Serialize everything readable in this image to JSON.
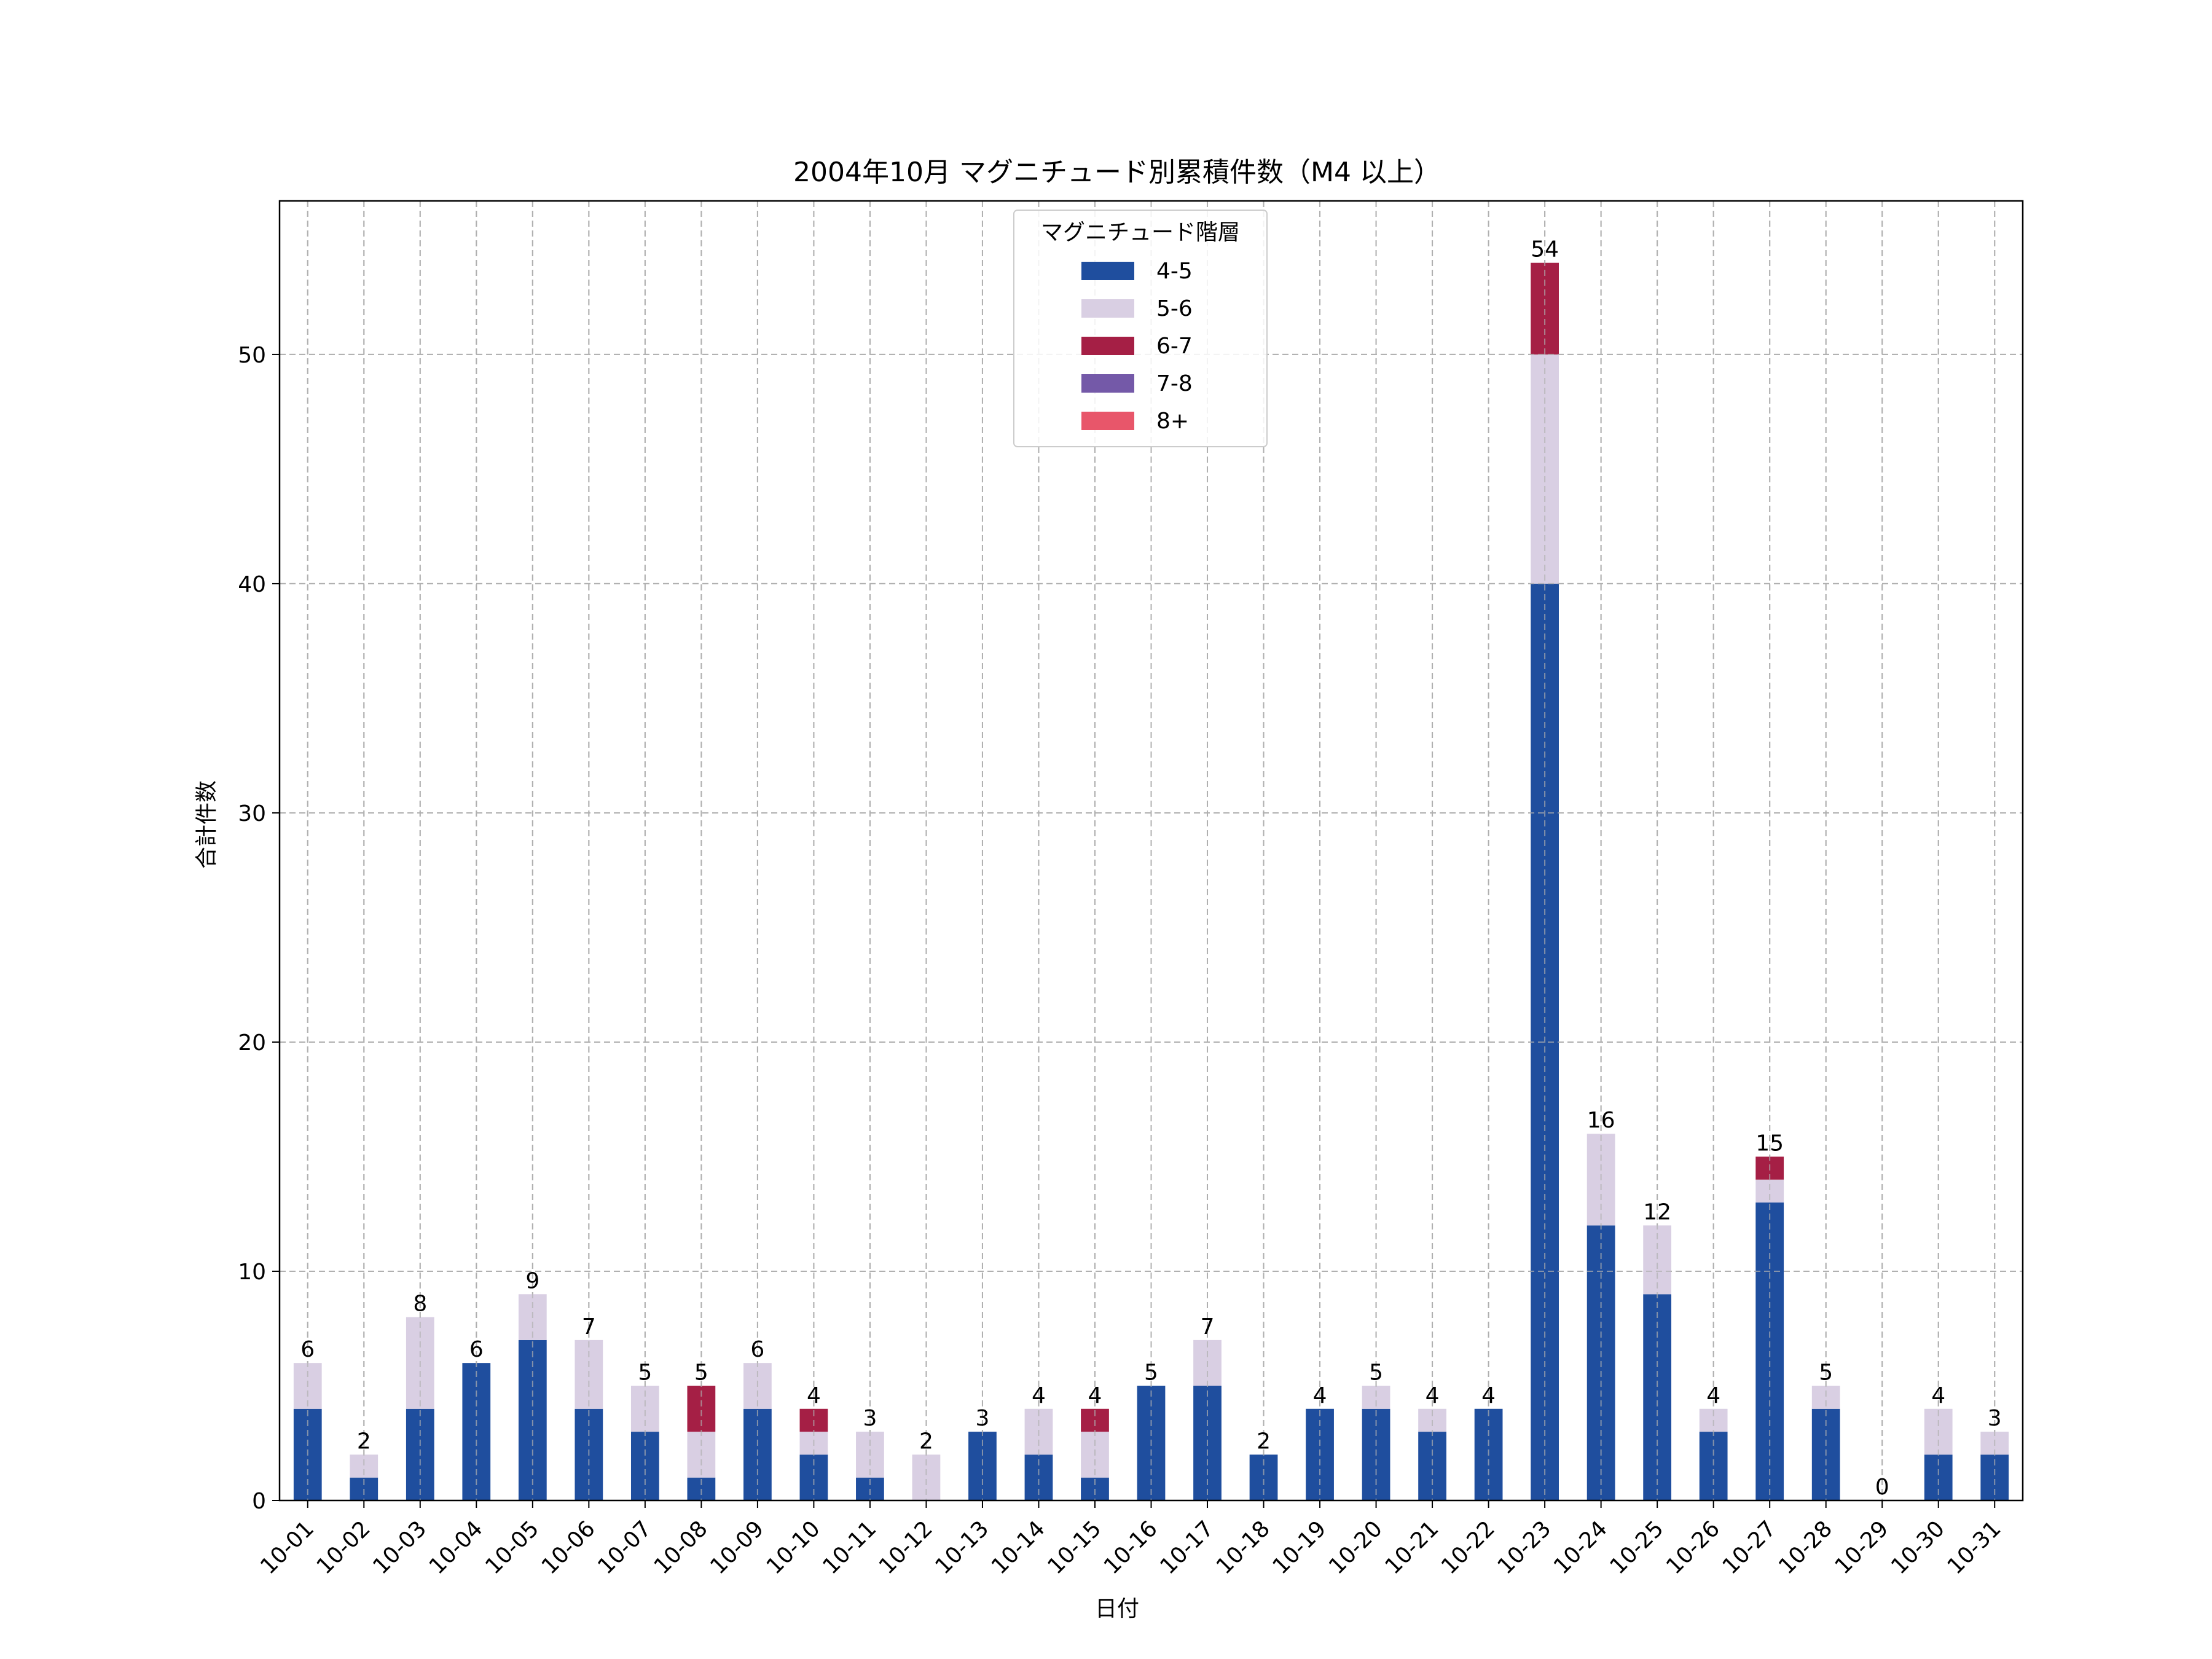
{
  "chart_data": {
    "type": "bar",
    "stacked": true,
    "title": "2004年10月 マグニチュード別累積件数（M4 以上）",
    "xlabel": "日付",
    "ylabel": "合計件数",
    "ylim": [
      0,
      56.7
    ],
    "yticks": [
      0,
      10,
      20,
      30,
      40,
      50
    ],
    "grid": true,
    "legend": {
      "title": "マグニチュード階層",
      "placement": "upper-center"
    },
    "categories": [
      "10-01",
      "10-02",
      "10-03",
      "10-04",
      "10-05",
      "10-06",
      "10-07",
      "10-08",
      "10-09",
      "10-10",
      "10-11",
      "10-12",
      "10-13",
      "10-14",
      "10-15",
      "10-16",
      "10-17",
      "10-18",
      "10-19",
      "10-20",
      "10-21",
      "10-22",
      "10-23",
      "10-24",
      "10-25",
      "10-26",
      "10-27",
      "10-28",
      "10-29",
      "10-30",
      "10-31"
    ],
    "series": [
      {
        "name": "4-5",
        "color": "#1f4e9e",
        "values": [
          4,
          1,
          4,
          6,
          7,
          4,
          3,
          1,
          4,
          2,
          1,
          0,
          3,
          2,
          1,
          5,
          5,
          2,
          4,
          4,
          3,
          4,
          40,
          12,
          9,
          3,
          13,
          4,
          0,
          2,
          2
        ]
      },
      {
        "name": "5-6",
        "color": "#d9cfe3",
        "values": [
          2,
          1,
          4,
          0,
          2,
          3,
          2,
          2,
          2,
          1,
          2,
          2,
          0,
          2,
          2,
          0,
          2,
          0,
          0,
          1,
          1,
          0,
          10,
          4,
          3,
          1,
          1,
          1,
          0,
          2,
          1
        ]
      },
      {
        "name": "6-7",
        "color": "#a51f45",
        "values": [
          0,
          0,
          0,
          0,
          0,
          0,
          0,
          2,
          0,
          1,
          0,
          0,
          0,
          0,
          1,
          0,
          0,
          0,
          0,
          0,
          0,
          0,
          4,
          0,
          0,
          0,
          1,
          0,
          0,
          0,
          0
        ]
      },
      {
        "name": "7-8",
        "color": "#7459a8",
        "values": [
          0,
          0,
          0,
          0,
          0,
          0,
          0,
          0,
          0,
          0,
          0,
          0,
          0,
          0,
          0,
          0,
          0,
          0,
          0,
          0,
          0,
          0,
          0,
          0,
          0,
          0,
          0,
          0,
          0,
          0,
          0
        ]
      },
      {
        "name": "8+",
        "color": "#e8566a",
        "values": [
          0,
          0,
          0,
          0,
          0,
          0,
          0,
          0,
          0,
          0,
          0,
          0,
          0,
          0,
          0,
          0,
          0,
          0,
          0,
          0,
          0,
          0,
          0,
          0,
          0,
          0,
          0,
          0,
          0,
          0,
          0
        ]
      }
    ],
    "totals": [
      6,
      2,
      8,
      6,
      9,
      7,
      5,
      5,
      6,
      4,
      3,
      2,
      3,
      4,
      4,
      5,
      7,
      2,
      4,
      5,
      4,
      4,
      54,
      16,
      12,
      4,
      15,
      5,
      0,
      4,
      3
    ]
  }
}
